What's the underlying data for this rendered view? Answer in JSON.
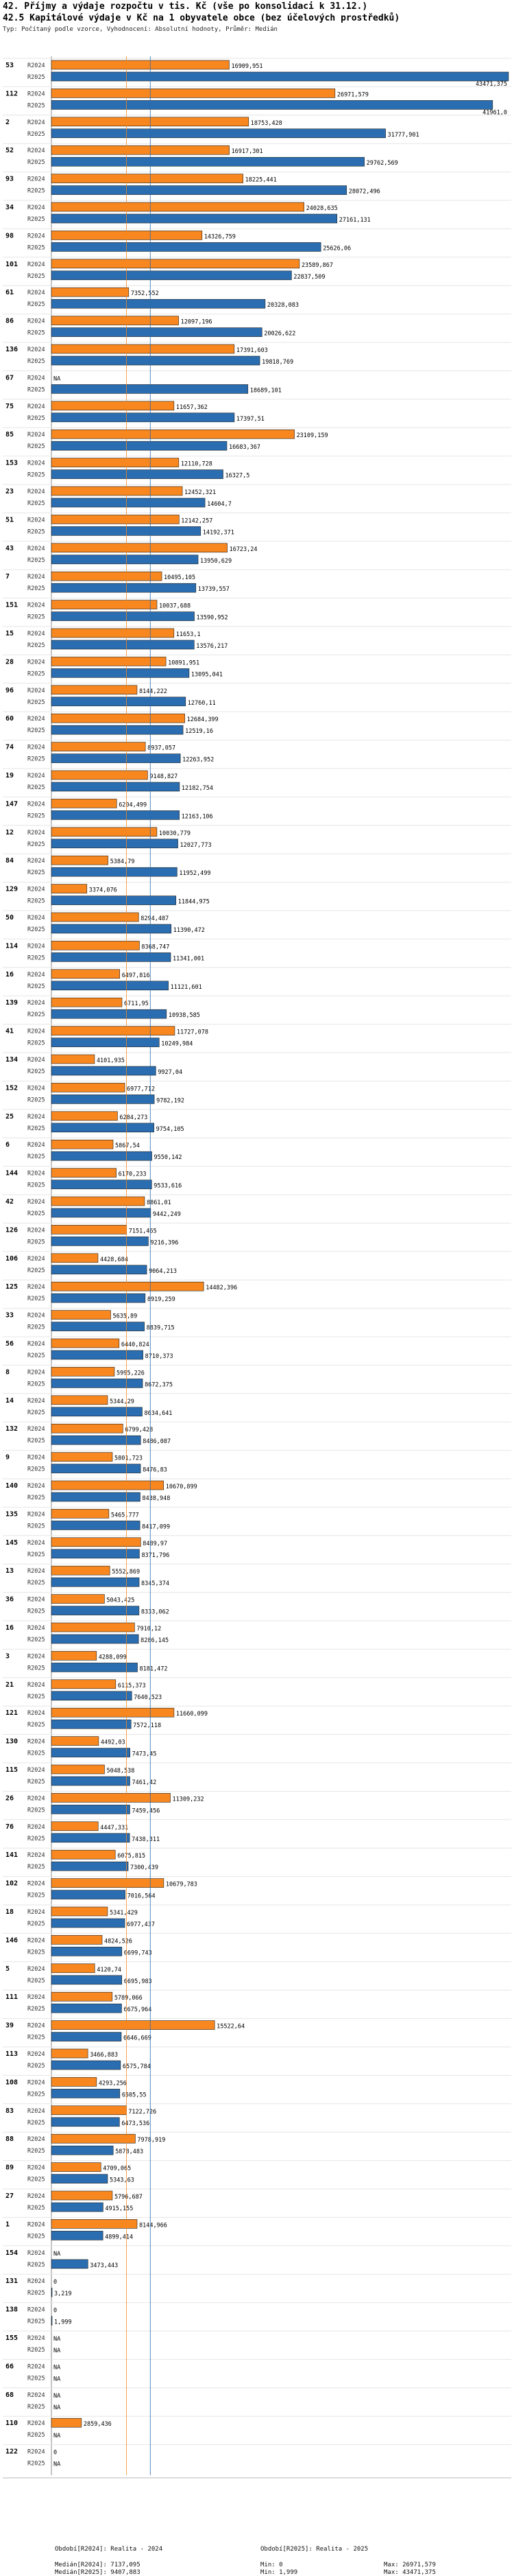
{
  "title": "42. Příjmy a výdaje rozpočtu v tis. Kč (vše po konsolidaci k 31.12.)",
  "subtitle": "42.5 Kapitálové výdaje v Kč na 1 obyvatele obce (bez účelových prostředků)",
  "note": "Typ: Počítaný podle vzorce, Vyhodnocení: Absolutní hodnoty, Průměr: Medián",
  "colors": {
    "r2024": "#f7871e",
    "r2025": "#2a6db0",
    "median2024": "#f7871e",
    "median2025": "#2a6db0"
  },
  "footer": {
    "period1": "Období[R2024]: Realita - 2024",
    "period2": "Období[R2025]: Realita - 2025",
    "median1": "Medián[R2024]: 7137,095",
    "median2": "Medián[R2025]: 9407,883",
    "min1": "Min: 0",
    "min2": "Min: 1,999",
    "max1": "Max: 26971,579",
    "max2": "Max: 43471,375"
  },
  "chart_data": {
    "type": "bar",
    "orientation": "horizontal",
    "title": "42.5 Kapitálové výdaje v Kč na 1 obyvatele obce (bez účelových prostředků)",
    "series_names": [
      "R2024",
      "R2025"
    ],
    "xlim": [
      0,
      43471.375
    ],
    "medians": {
      "R2024": 7137.095,
      "R2025": 9407.883
    },
    "groups": [
      {
        "id": "53",
        "r2024": 16909.951,
        "l2024": "16909,951",
        "r2025": 43471.375,
        "l2025": "43471,375"
      },
      {
        "id": "112",
        "r2024": 26971.579,
        "l2024": "26971,579",
        "r2025": 41961.0,
        "l2025": "41961,0"
      },
      {
        "id": "2",
        "r2024": 18753.428,
        "l2024": "18753,428",
        "r2025": 31777.901,
        "l2025": "31777,901"
      },
      {
        "id": "52",
        "r2024": 16917.301,
        "l2024": "16917,301",
        "r2025": 29762.569,
        "l2025": "29762,569"
      },
      {
        "id": "93",
        "r2024": 18225.441,
        "l2024": "18225,441",
        "r2025": 28072.496,
        "l2025": "28072,496"
      },
      {
        "id": "34",
        "r2024": 24028.635,
        "l2024": "24028,635",
        "r2025": 27161.131,
        "l2025": "27161,131"
      },
      {
        "id": "98",
        "r2024": 14326.759,
        "l2024": "14326,759",
        "r2025": 25626.06,
        "l2025": "25626,06"
      },
      {
        "id": "101",
        "r2024": 23589.867,
        "l2024": "23589,867",
        "r2025": 22837.509,
        "l2025": "22837,509"
      },
      {
        "id": "61",
        "r2024": 7352.552,
        "l2024": "7352,552",
        "r2025": 20328.083,
        "l2025": "20328,083"
      },
      {
        "id": "86",
        "r2024": 12097.196,
        "l2024": "12097,196",
        "r2025": 20026.622,
        "l2025": "20026,622"
      },
      {
        "id": "136",
        "r2024": 17391.603,
        "l2024": "17391,603",
        "r2025": 19818.769,
        "l2025": "19818,769"
      },
      {
        "id": "67",
        "r2024": null,
        "l2024": "NA",
        "r2025": 18689.101,
        "l2025": "18689,101"
      },
      {
        "id": "75",
        "r2024": 11657.362,
        "l2024": "11657,362",
        "r2025": 17397.51,
        "l2025": "17397,51"
      },
      {
        "id": "85",
        "r2024": 23109.159,
        "l2024": "23109,159",
        "r2025": 16683.367,
        "l2025": "16683,367"
      },
      {
        "id": "153",
        "r2024": 12110.728,
        "l2024": "12110,728",
        "r2025": 16327.5,
        "l2025": "16327,5"
      },
      {
        "id": "23",
        "r2024": 12452.321,
        "l2024": "12452,321",
        "r2025": 14604.7,
        "l2025": "14604,7"
      },
      {
        "id": "51",
        "r2024": 12142.257,
        "l2024": "12142,257",
        "r2025": 14192.371,
        "l2025": "14192,371"
      },
      {
        "id": "43",
        "r2024": 16723.24,
        "l2024": "16723,24",
        "r2025": 13950.629,
        "l2025": "13950,629"
      },
      {
        "id": "7",
        "r2024": 10495.105,
        "l2024": "10495,105",
        "r2025": 13739.557,
        "l2025": "13739,557"
      },
      {
        "id": "151",
        "r2024": 10037.688,
        "l2024": "10037,688",
        "r2025": 13590.952,
        "l2025": "13590,952"
      },
      {
        "id": "15",
        "r2024": 11653.1,
        "l2024": "11653,1",
        "r2025": 13576.217,
        "l2025": "13576,217"
      },
      {
        "id": "28",
        "r2024": 10891.951,
        "l2024": "10891,951",
        "r2025": 13095.041,
        "l2025": "13095,041"
      },
      {
        "id": "96",
        "r2024": 8144.222,
        "l2024": "8144,222",
        "r2025": 12760.11,
        "l2025": "12760,11"
      },
      {
        "id": "60",
        "r2024": 12684.399,
        "l2024": "12684,399",
        "r2025": 12519.16,
        "l2025": "12519,16"
      },
      {
        "id": "74",
        "r2024": 8937.057,
        "l2024": "8937,057",
        "r2025": 12263.952,
        "l2025": "12263,952"
      },
      {
        "id": "19",
        "r2024": 9148.827,
        "l2024": "9148,827",
        "r2025": 12182.754,
        "l2025": "12182,754"
      },
      {
        "id": "147",
        "r2024": 6204.499,
        "l2024": "6204,499",
        "r2025": 12163.106,
        "l2025": "12163,106"
      },
      {
        "id": "12",
        "r2024": 10030.779,
        "l2024": "10030,779",
        "r2025": 12027.773,
        "l2025": "12027,773"
      },
      {
        "id": "84",
        "r2024": 5384.79,
        "l2024": "5384,79",
        "r2025": 11952.499,
        "l2025": "11952,499"
      },
      {
        "id": "129",
        "r2024": 3374.076,
        "l2024": "3374,076",
        "r2025": 11844.975,
        "l2025": "11844,975"
      },
      {
        "id": "50",
        "r2024": 8294.487,
        "l2024": "8294,487",
        "r2025": 11390.472,
        "l2025": "11390,472"
      },
      {
        "id": "114",
        "r2024": 8368.747,
        "l2024": "8368,747",
        "r2025": 11341.001,
        "l2025": "11341,001"
      },
      {
        "id": "16",
        "r2024": 6497.816,
        "l2024": "6497,816",
        "r2025": 11121.601,
        "l2025": "11121,601"
      },
      {
        "id": "139",
        "r2024": 6711.95,
        "l2024": "6711,95",
        "r2025": 10938.585,
        "l2025": "10938,585"
      },
      {
        "id": "41",
        "r2024": 11727.078,
        "l2024": "11727,078",
        "r2025": 10249.984,
        "l2025": "10249,984"
      },
      {
        "id": "134",
        "r2024": 4101.935,
        "l2024": "4101,935",
        "r2025": 9927.04,
        "l2025": "9927,04"
      },
      {
        "id": "152",
        "r2024": 6977.712,
        "l2024": "6977,712",
        "r2025": 9782.192,
        "l2025": "9782,192"
      },
      {
        "id": "25",
        "r2024": 6284.273,
        "l2024": "6284,273",
        "r2025": 9754.105,
        "l2025": "9754,105"
      },
      {
        "id": "6",
        "r2024": 5867.54,
        "l2024": "5867,54",
        "r2025": 9550.142,
        "l2025": "9550,142"
      },
      {
        "id": "144",
        "r2024": 6170.233,
        "l2024": "6170,233",
        "r2025": 9533.616,
        "l2025": "9533,616"
      },
      {
        "id": "42",
        "r2024": 8861.01,
        "l2024": "8861,01",
        "r2025": 9442.249,
        "l2025": "9442,249"
      },
      {
        "id": "126",
        "r2024": 7151.465,
        "l2024": "7151,465",
        "r2025": 9216.396,
        "l2025": "9216,396"
      },
      {
        "id": "106",
        "r2024": 4428.684,
        "l2024": "4428,684",
        "r2025": 9064.213,
        "l2025": "9064,213"
      },
      {
        "id": "125",
        "r2024": 14482.396,
        "l2024": "14482,396",
        "r2025": 8919.259,
        "l2025": "8919,259"
      },
      {
        "id": "33",
        "r2024": 5635.89,
        "l2024": "5635,89",
        "r2025": 8839.715,
        "l2025": "8839,715"
      },
      {
        "id": "56",
        "r2024": 6440.824,
        "l2024": "6440,824",
        "r2025": 8710.373,
        "l2025": "8710,373"
      },
      {
        "id": "8",
        "r2024": 5995.226,
        "l2024": "5995,226",
        "r2025": 8672.375,
        "l2025": "8672,375"
      },
      {
        "id": "14",
        "r2024": 5344.29,
        "l2024": "5344,29",
        "r2025": 8634.641,
        "l2025": "8634,641"
      },
      {
        "id": "132",
        "r2024": 6799.428,
        "l2024": "6799,428",
        "r2025": 8486.087,
        "l2025": "8486,087"
      },
      {
        "id": "9",
        "r2024": 5801.723,
        "l2024": "5801,723",
        "r2025": 8476.83,
        "l2025": "8476,83"
      },
      {
        "id": "140",
        "r2024": 10670.899,
        "l2024": "10670,899",
        "r2025": 8438.948,
        "l2025": "8438,948"
      },
      {
        "id": "135",
        "r2024": 5465.777,
        "l2024": "5465,777",
        "r2025": 8417.099,
        "l2025": "8417,099"
      },
      {
        "id": "145",
        "r2024": 8489.97,
        "l2024": "8489,97",
        "r2025": 8371.796,
        "l2025": "8371,796"
      },
      {
        "id": "13",
        "r2024": 5552.869,
        "l2024": "5552,869",
        "r2025": 8345.374,
        "l2025": "8345,374"
      },
      {
        "id": "36",
        "r2024": 5043.425,
        "l2024": "5043,425",
        "r2025": 8333.062,
        "l2025": "8333,062"
      },
      {
        "id": "16",
        "r2024": 7910.12,
        "l2024": "7910,12",
        "r2025": 8286.145,
        "l2025": "8286,145"
      },
      {
        "id": "3",
        "r2024": 4288.099,
        "l2024": "4288,099",
        "r2025": 8181.472,
        "l2025": "8181,472"
      },
      {
        "id": "21",
        "r2024": 6115.373,
        "l2024": "6115,373",
        "r2025": 7640.523,
        "l2025": "7640,523"
      },
      {
        "id": "121",
        "r2024": 11660.099,
        "l2024": "11660,099",
        "r2025": 7572.118,
        "l2025": "7572,118"
      },
      {
        "id": "130",
        "r2024": 4492.03,
        "l2024": "4492,03",
        "r2025": 7473.45,
        "l2025": "7473,45"
      },
      {
        "id": "115",
        "r2024": 5048.538,
        "l2024": "5048,538",
        "r2025": 7461.42,
        "l2025": "7461,42"
      },
      {
        "id": "26",
        "r2024": 11309.232,
        "l2024": "11309,232",
        "r2025": 7459.456,
        "l2025": "7459,456"
      },
      {
        "id": "76",
        "r2024": 4447.331,
        "l2024": "4447,331",
        "r2025": 7438.311,
        "l2025": "7438,311"
      },
      {
        "id": "141",
        "r2024": 6075.815,
        "l2024": "6075,815",
        "r2025": 7300.439,
        "l2025": "7300,439"
      },
      {
        "id": "102",
        "r2024": 10679.783,
        "l2024": "10679,783",
        "r2025": 7016.564,
        "l2025": "7016,564"
      },
      {
        "id": "18",
        "r2024": 5341.429,
        "l2024": "5341,429",
        "r2025": 6977.437,
        "l2025": "6977,437"
      },
      {
        "id": "146",
        "r2024": 4824.526,
        "l2024": "4824,526",
        "r2025": 6699.743,
        "l2025": "6699,743"
      },
      {
        "id": "5",
        "r2024": 4120.74,
        "l2024": "4120,74",
        "r2025": 6695.983,
        "l2025": "6695,983"
      },
      {
        "id": "111",
        "r2024": 5789.066,
        "l2024": "5789,066",
        "r2025": 6675.964,
        "l2025": "6675,964"
      },
      {
        "id": "39",
        "r2024": 15522.64,
        "l2024": "15522,64",
        "r2025": 6646.669,
        "l2025": "6646,669"
      },
      {
        "id": "113",
        "r2024": 3466.883,
        "l2024": "3466,883",
        "r2025": 6575.784,
        "l2025": "6575,784"
      },
      {
        "id": "108",
        "r2024": 4293.256,
        "l2024": "4293,256",
        "r2025": 6505.55,
        "l2025": "6505,55"
      },
      {
        "id": "83",
        "r2024": 7122.726,
        "l2024": "7122,726",
        "r2025": 6473.536,
        "l2025": "6473,536"
      },
      {
        "id": "88",
        "r2024": 7978.919,
        "l2024": "7978,919",
        "r2025": 5878.483,
        "l2025": "5878,483"
      },
      {
        "id": "89",
        "r2024": 4709.065,
        "l2024": "4709,065",
        "r2025": 5343.63,
        "l2025": "5343,63"
      },
      {
        "id": "27",
        "r2024": 5796.687,
        "l2024": "5796,687",
        "r2025": 4915.155,
        "l2025": "4915,155"
      },
      {
        "id": "1",
        "r2024": 8144.966,
        "l2024": "8144,966",
        "r2025": 4899.414,
        "l2025": "4899,414"
      },
      {
        "id": "154",
        "r2024": null,
        "l2024": "NA",
        "r2025": 3473.443,
        "l2025": "3473,443"
      },
      {
        "id": "131",
        "r2024": 0,
        "l2024": "0",
        "r2025": 3.219,
        "l2025": "3,219"
      },
      {
        "id": "138",
        "r2024": 0,
        "l2024": "0",
        "r2025": 1.999,
        "l2025": "1,999"
      },
      {
        "id": "155",
        "r2024": null,
        "l2024": "NA",
        "r2025": null,
        "l2025": "NA"
      },
      {
        "id": "66",
        "r2024": null,
        "l2024": "NA",
        "r2025": null,
        "l2025": "NA"
      },
      {
        "id": "68",
        "r2024": null,
        "l2024": "NA",
        "r2025": null,
        "l2025": "NA"
      },
      {
        "id": "110",
        "r2024": 2859.436,
        "l2024": "2859,436",
        "r2025": null,
        "l2025": "NA"
      },
      {
        "id": "122",
        "r2024": 0,
        "l2024": "0",
        "r2025": null,
        "l2025": "NA"
      }
    ]
  }
}
